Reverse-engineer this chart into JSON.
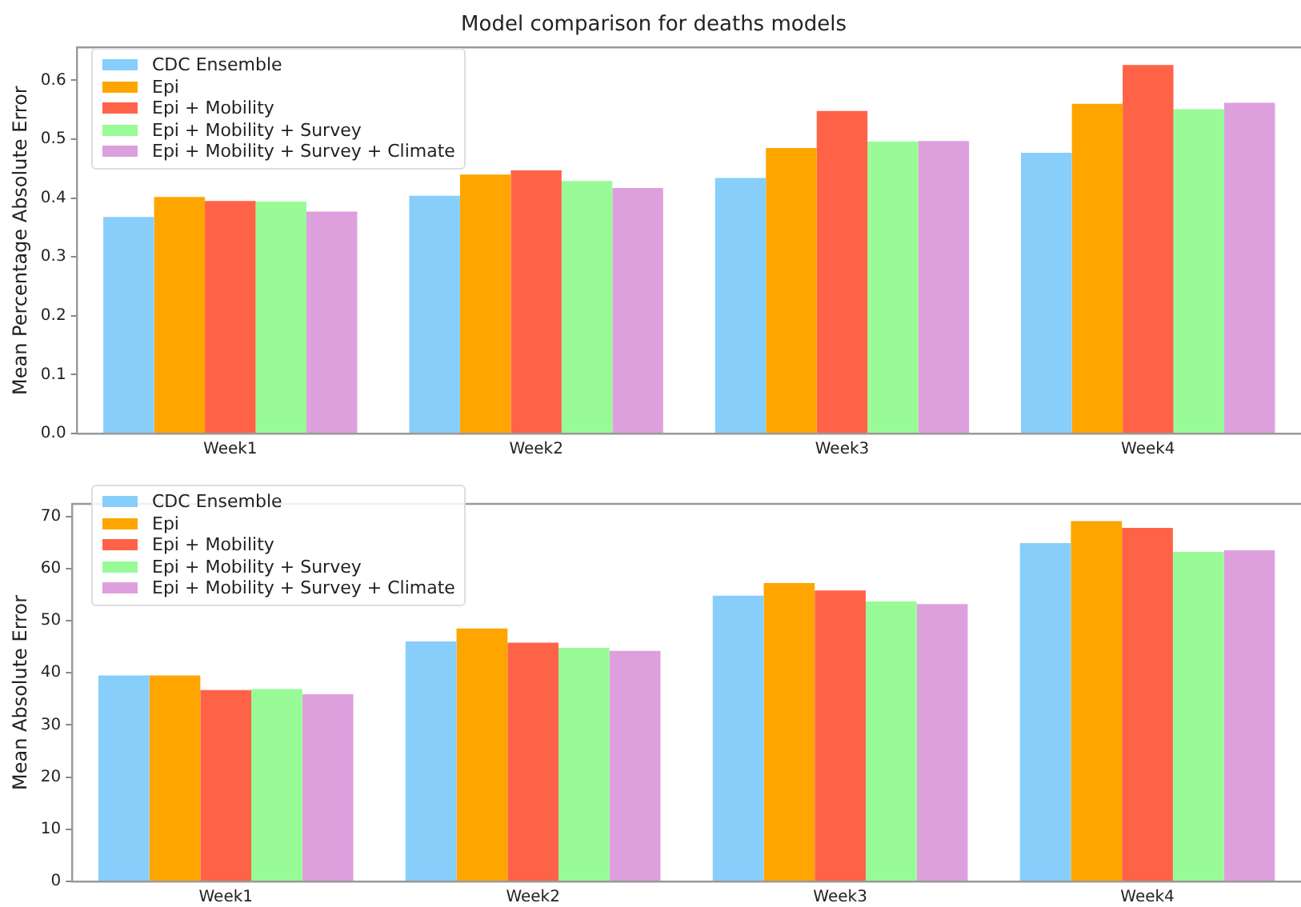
{
  "chart_data": [
    {
      "type": "bar",
      "title": "Model comparison for deaths models",
      "ylabel": "Mean Percentage Absolute Error",
      "categories": [
        "Week1",
        "Week2",
        "Week3",
        "Week4"
      ],
      "series": [
        {
          "name": "CDC Ensemble",
          "color": "#87cefa",
          "values": [
            0.368,
            0.404,
            0.434,
            0.477
          ]
        },
        {
          "name": "Epi",
          "color": "#ffa500",
          "values": [
            0.402,
            0.44,
            0.485,
            0.56
          ]
        },
        {
          "name": "Epi + Mobility",
          "color": "#ff6347",
          "values": [
            0.395,
            0.447,
            0.548,
            0.626
          ]
        },
        {
          "name": "Epi + Mobility + Survey",
          "color": "#98fb98",
          "values": [
            0.394,
            0.429,
            0.496,
            0.551
          ]
        },
        {
          "name": "Epi + Mobility + Survey + Climate",
          "color": "#dda0dd",
          "values": [
            0.377,
            0.417,
            0.497,
            0.562
          ]
        }
      ],
      "ylim": [
        0,
        0.656
      ],
      "yticks": [
        {
          "value": 0,
          "label": "0.0"
        },
        0.1,
        0.2,
        0.3,
        0.4,
        0.5,
        0.6
      ],
      "grid": false,
      "legend": "top left"
    },
    {
      "type": "bar",
      "ylabel": "Mean Absolute Error",
      "categories": [
        "Week1",
        "Week2",
        "Week3",
        "Week4"
      ],
      "series": [
        {
          "name": "CDC Ensemble",
          "color": "#87cefa",
          "values": [
            39.5,
            46.0,
            54.8,
            64.9
          ]
        },
        {
          "name": "Epi",
          "color": "#ffa500",
          "values": [
            39.5,
            48.5,
            57.2,
            69.1
          ]
        },
        {
          "name": "Epi + Mobility",
          "color": "#ff6347",
          "values": [
            36.7,
            45.8,
            55.8,
            67.8
          ]
        },
        {
          "name": "Epi + Mobility + Survey",
          "color": "#98fb98",
          "values": [
            36.9,
            44.8,
            53.7,
            63.2
          ]
        },
        {
          "name": "Epi + Mobility + Survey + Climate",
          "color": "#dda0dd",
          "values": [
            35.9,
            44.2,
            53.2,
            63.5
          ]
        }
      ],
      "ylim": [
        0,
        72.4
      ],
      "yticks": [
        0,
        10,
        20,
        30,
        40,
        50,
        60,
        70
      ],
      "grid": false,
      "legend": "top left"
    }
  ]
}
